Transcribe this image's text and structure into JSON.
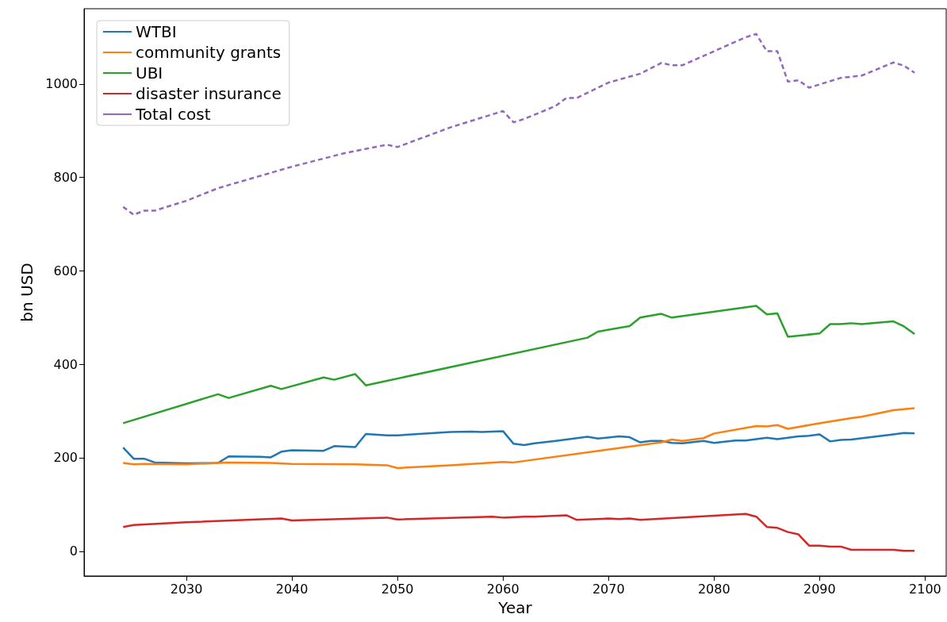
{
  "chart_data": {
    "type": "line",
    "xlabel": "Year",
    "ylabel": "bn USD",
    "xlim": [
      2020.3,
      2102
    ],
    "ylim": [
      -53,
      1161
    ],
    "xticks": [
      2030,
      2040,
      2050,
      2060,
      2070,
      2080,
      2090,
      2100
    ],
    "yticks": [
      0,
      200,
      400,
      600,
      800,
      1000
    ],
    "grid": false,
    "legend": "top left",
    "marker": "none",
    "series": [
      {
        "name": "WTBI",
        "color": "#1f77b4",
        "x": [
          2024,
          2025,
          2026,
          2027,
          2030,
          2033,
          2034,
          2037,
          2038,
          2039,
          2040,
          2043,
          2044,
          2046,
          2047,
          2049,
          2050,
          2052,
          2055,
          2057,
          2058,
          2060,
          2061,
          2062,
          2063,
          2065,
          2068,
          2069,
          2071,
          2072,
          2073,
          2074,
          2075,
          2076,
          2077,
          2079,
          2080,
          2082,
          2083,
          2085,
          2086,
          2088,
          2089,
          2090,
          2091,
          2092,
          2093,
          2097,
          2098,
          2099
        ],
        "values": [
          222,
          198,
          198,
          190,
          188,
          189,
          203,
          202,
          201,
          213,
          216,
          215,
          225,
          223,
          251,
          248,
          248,
          251,
          255,
          256,
          255,
          257,
          230,
          227,
          231,
          236,
          245,
          241,
          246,
          244,
          233,
          236,
          236,
          232,
          231,
          236,
          232,
          237,
          237,
          243,
          240,
          246,
          247,
          250,
          235,
          238,
          239,
          250,
          253,
          252
        ]
      },
      {
        "name": "community grants",
        "color": "#ff7f0e",
        "x": [
          2024,
          2025,
          2026,
          2030,
          2033,
          2034,
          2038,
          2040,
          2046,
          2049,
          2050,
          2055,
          2060,
          2061,
          2075,
          2076,
          2077,
          2079,
          2080,
          2084,
          2085,
          2086,
          2087,
          2090,
          2093,
          2094,
          2097,
          2099
        ],
        "values": [
          189,
          186,
          187,
          186,
          189,
          190,
          189,
          187,
          186,
          184,
          178,
          184,
          191,
          190,
          233,
          239,
          236,
          242,
          252,
          268,
          267,
          270,
          262,
          274,
          285,
          288,
          302,
          306
        ]
      },
      {
        "name": "UBI",
        "color": "#2ca02c",
        "x": [
          2024,
          2033,
          2034,
          2038,
          2039,
          2043,
          2044,
          2046,
          2047,
          2068,
          2069,
          2072,
          2073,
          2075,
          2076,
          2084,
          2085,
          2086,
          2087,
          2090,
          2091,
          2092,
          2093,
          2094,
          2097,
          2098,
          2099
        ],
        "values": [
          274,
          336,
          328,
          354,
          347,
          372,
          367,
          379,
          355,
          457,
          470,
          482,
          500,
          508,
          500,
          525,
          507,
          509,
          459,
          466,
          486,
          486,
          488,
          486,
          492,
          481,
          465
        ]
      },
      {
        "name": "disaster insurance",
        "color": "#d62728",
        "x": [
          2024,
          2025,
          2030,
          2039,
          2040,
          2049,
          2050,
          2059,
          2060,
          2062,
          2063,
          2066,
          2067,
          2070,
          2071,
          2072,
          2073,
          2083,
          2084,
          2085,
          2086,
          2087,
          2088,
          2089,
          2090,
          2091,
          2092,
          2093,
          2097,
          2098,
          2099
        ],
        "values": [
          52,
          56,
          62,
          70,
          66,
          72,
          68,
          74,
          72,
          74,
          74,
          77,
          67,
          70,
          69,
          70,
          67,
          80,
          74,
          52,
          50,
          41,
          36,
          12,
          12,
          10,
          10,
          3,
          3,
          1,
          1
        ]
      },
      {
        "name": "Total cost",
        "color": "#9467bd",
        "line_style": "dashed",
        "x": [
          2024,
          2025,
          2026,
          2027,
          2030,
          2033,
          2040,
          2045,
          2049,
          2050,
          2055,
          2060,
          2061,
          2062,
          2065,
          2066,
          2067,
          2070,
          2073,
          2075,
          2076,
          2077,
          2083,
          2084,
          2085,
          2086,
          2087,
          2088,
          2089,
          2092,
          2094,
          2097,
          2098,
          2099
        ],
        "values": [
          737,
          720,
          729,
          729,
          750,
          777,
          823,
          852,
          870,
          865,
          907,
          942,
          918,
          925,
          953,
          970,
          970,
          1003,
          1022,
          1045,
          1040,
          1040,
          1100,
          1107,
          1070,
          1070,
          1005,
          1008,
          992,
          1013,
          1018,
          1046,
          1039,
          1024
        ]
      }
    ]
  }
}
